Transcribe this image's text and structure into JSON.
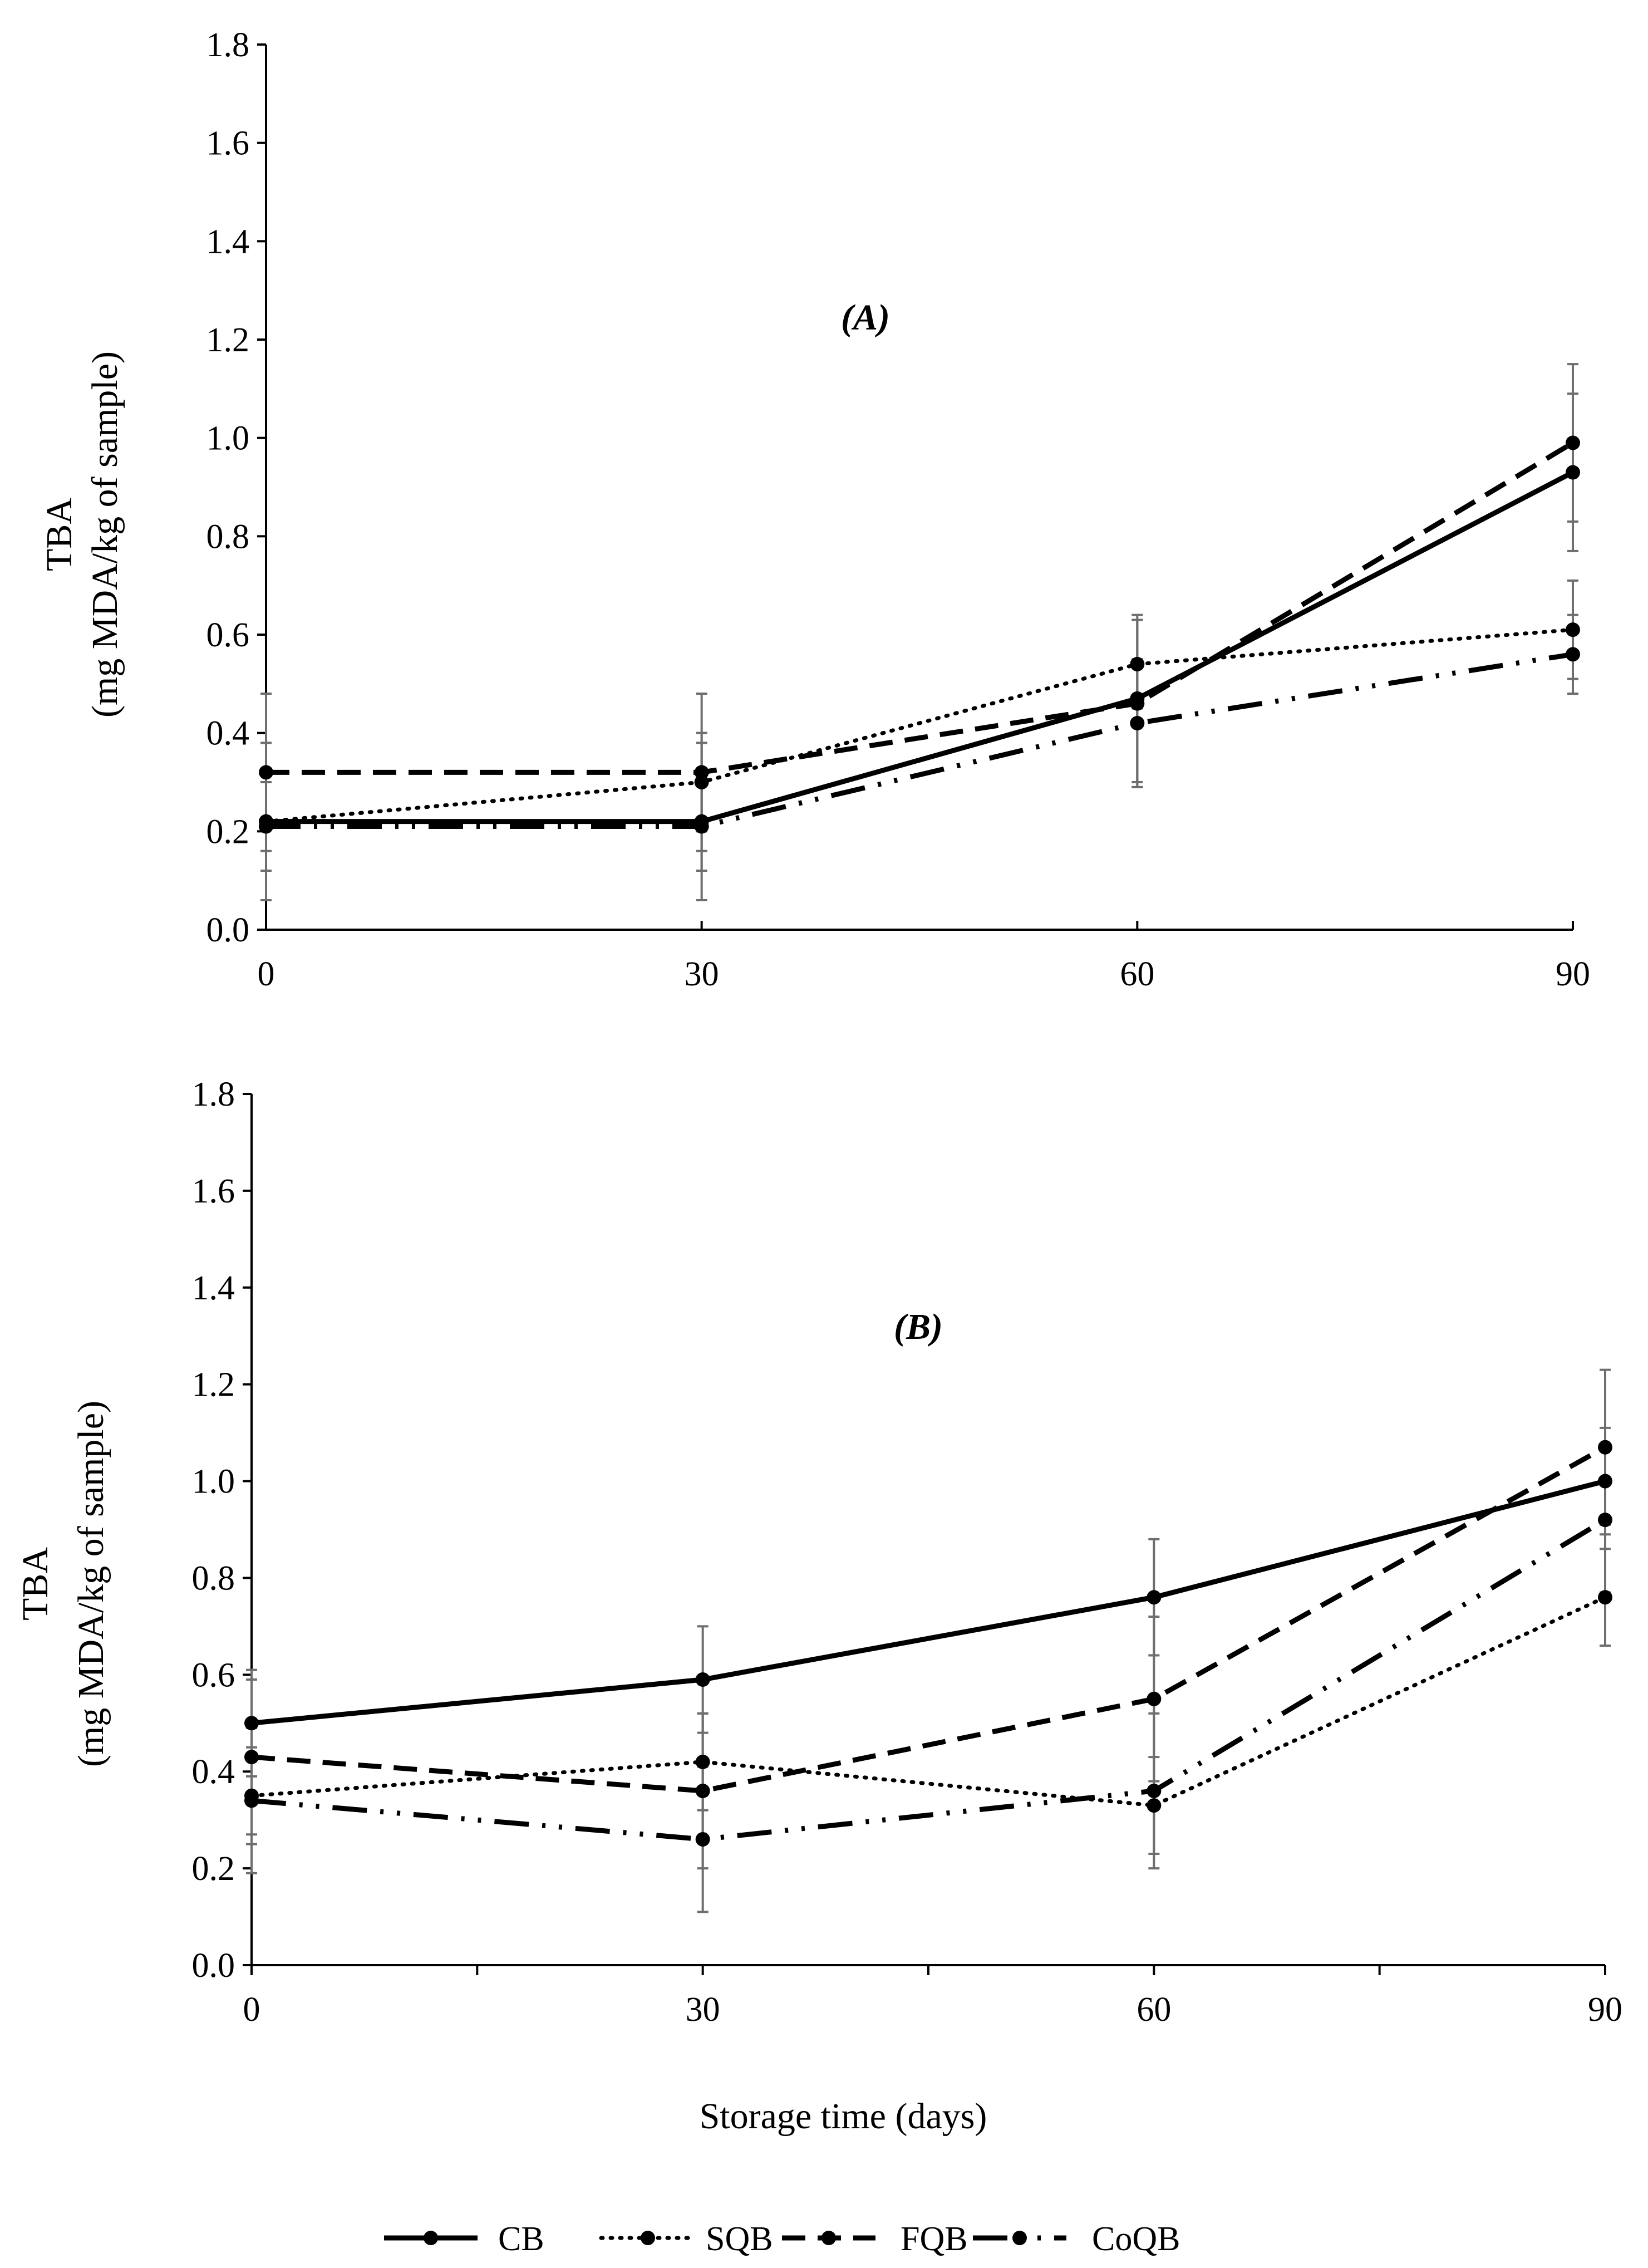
{
  "figure": {
    "x_axis_title": "Storage time (days)"
  },
  "legend": [
    {
      "name": "CB",
      "style": "solid"
    },
    {
      "name": "SQB",
      "style": "dotted"
    },
    {
      "name": "FQB",
      "style": "dashed"
    },
    {
      "name": "CoQB",
      "style": "dashdot"
    }
  ],
  "chart_data": [
    {
      "type": "line",
      "panel_label": "(A)",
      "title": "",
      "xlabel": "",
      "ylabel_line1": "TBA",
      "ylabel_line2": "(mg MDA/kg of sample)",
      "x": [
        0,
        30,
        60,
        90
      ],
      "x_tick_labels": [
        "0",
        "30",
        "60",
        "90"
      ],
      "xlim": [
        0,
        90
      ],
      "ylim": [
        0,
        1.8
      ],
      "y_ticks": [
        0,
        0.2,
        0.4,
        0.6,
        0.8,
        1.0,
        1.2,
        1.4,
        1.6,
        1.8
      ],
      "y_tick_labels": [
        "0.0",
        "0.2",
        "0.4",
        "0.6",
        "0.8",
        "1.0",
        "1.2",
        "1.4",
        "1.6",
        "1.8"
      ],
      "grid": false,
      "series": [
        {
          "name": "CB",
          "style": "solid",
          "values": [
            0.22,
            0.22,
            0.47,
            0.93
          ],
          "errors": [
            0.16,
            0.16,
            0.17,
            0.16
          ]
        },
        {
          "name": "SQB",
          "style": "dotted",
          "values": [
            0.22,
            0.3,
            0.54,
            0.61
          ],
          "errors": [
            0.1,
            0.1,
            0.09,
            0.1
          ]
        },
        {
          "name": "FQB",
          "style": "dashed",
          "values": [
            0.32,
            0.32,
            0.46,
            0.99
          ],
          "errors": [
            0.16,
            0.16,
            0.17,
            0.16
          ]
        },
        {
          "name": "CoQB",
          "style": "dashdot",
          "values": [
            0.21,
            0.21,
            0.42,
            0.56
          ],
          "errors": [
            0.09,
            0.09,
            0.13,
            0.08
          ]
        }
      ]
    },
    {
      "type": "line",
      "panel_label": "(B)",
      "title": "",
      "xlabel": "Storage time (days)",
      "ylabel_line1": "TBA",
      "ylabel_line2": "(mg MDA/kg of sample)",
      "x": [
        0,
        30,
        60,
        90
      ],
      "x_tick_labels": [
        "0",
        "30",
        "60",
        "90"
      ],
      "xlim": [
        0,
        90
      ],
      "ylim": [
        0,
        1.8
      ],
      "y_ticks": [
        0,
        0.2,
        0.4,
        0.6,
        0.8,
        1.0,
        1.2,
        1.4,
        1.6,
        1.8
      ],
      "y_tick_labels": [
        "0.0",
        "0.2",
        "0.4",
        "0.6",
        "0.8",
        "1.0",
        "1.2",
        "1.4",
        "1.6",
        "1.8"
      ],
      "grid": false,
      "series": [
        {
          "name": "CB",
          "style": "solid",
          "values": [
            0.5,
            0.59,
            0.76,
            1.0
          ],
          "errors": [
            0.11,
            0.11,
            0.12,
            0.11
          ]
        },
        {
          "name": "SQB",
          "style": "dotted",
          "values": [
            0.35,
            0.42,
            0.33,
            0.76
          ],
          "errors": [
            0.1,
            0.1,
            0.1,
            0.1
          ]
        },
        {
          "name": "FQB",
          "style": "dashed",
          "values": [
            0.43,
            0.36,
            0.55,
            1.07
          ],
          "errors": [
            0.16,
            0.16,
            0.17,
            0.16
          ]
        },
        {
          "name": "CoQB",
          "style": "dashdot",
          "values": [
            0.34,
            0.26,
            0.36,
            0.92
          ],
          "errors": [
            0.15,
            0.15,
            0.16,
            0.15
          ]
        }
      ]
    }
  ]
}
